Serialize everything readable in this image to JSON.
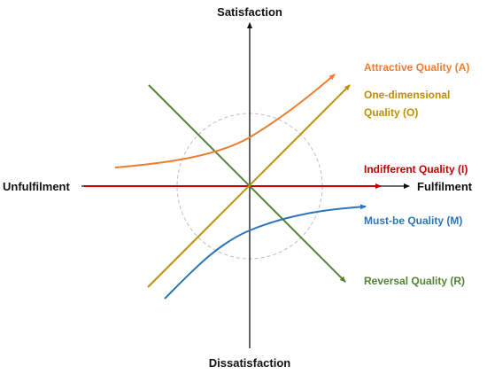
{
  "axes": {
    "top": "Satisfaction",
    "bottom": "Dissatisfaction",
    "left": "Unfulfilment",
    "right": "Fulfilment"
  },
  "curves": {
    "attractive": {
      "label": "Attractive Quality (A)",
      "color": "#ed7d31"
    },
    "one_dimensional": {
      "label_line1": "One-dimensional",
      "label_line2": "Quality (O)",
      "color": "#bf9000"
    },
    "indifferent": {
      "label": "Indifferent Quality (I)",
      "color": "#c00000"
    },
    "must_be": {
      "label": "Must-be Quality (M)",
      "color": "#2e75b6"
    },
    "reversal": {
      "label": "Reversal Quality (R)",
      "color": "#548235"
    }
  },
  "colors": {
    "axis": "#111111",
    "dashed_circle": "#bfbfbf"
  }
}
